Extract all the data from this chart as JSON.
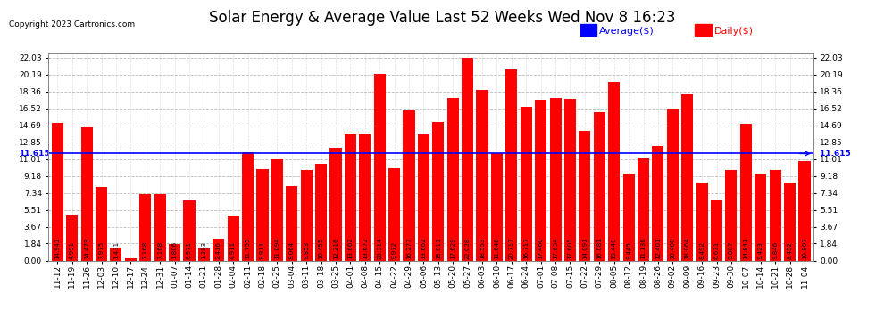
{
  "title": "Solar Energy & Average Value Last 52 Weeks Wed Nov 8 16:23",
  "copyright": "Copyright 2023 Cartronics.com",
  "legend_average": "Average($)",
  "legend_daily": "Daily($)",
  "average_value": 11.615,
  "categories": [
    "11-12",
    "11-19",
    "11-26",
    "12-03",
    "12-10",
    "12-17",
    "12-24",
    "12-31",
    "01-07",
    "01-14",
    "01-21",
    "01-28",
    "02-04",
    "02-11",
    "02-18",
    "02-25",
    "03-04",
    "03-11",
    "03-18",
    "03-25",
    "04-01",
    "04-08",
    "04-15",
    "04-22",
    "04-29",
    "05-06",
    "05-13",
    "05-20",
    "05-27",
    "06-03",
    "06-10",
    "06-17",
    "06-24",
    "07-01",
    "07-08",
    "07-15",
    "07-22",
    "07-29",
    "08-05",
    "08-12",
    "08-19",
    "08-26",
    "09-02",
    "09-09",
    "09-16",
    "09-23",
    "09-30",
    "10-07",
    "10-14",
    "10-21",
    "10-28",
    "11-04"
  ],
  "values": [
    14.941,
    4.991,
    14.479,
    7.975,
    1.431,
    0.243,
    7.168,
    7.168,
    1.806,
    6.571,
    1.293,
    2.416,
    4.911,
    11.755,
    9.911,
    11.094,
    8.064,
    9.853,
    10.455,
    12.216,
    13.662,
    13.672,
    20.314,
    9.972,
    16.277,
    13.662,
    15.011,
    17.629,
    22.028,
    18.553,
    11.646,
    20.717,
    16.717,
    17.46,
    17.634,
    17.605,
    14.091,
    16.081,
    19.44,
    9.445,
    11.136,
    12.401,
    16.46,
    18.064,
    8.492,
    6.631,
    9.807,
    14.841,
    9.423,
    9.846,
    8.452,
    10.807
  ],
  "bar_color": "#ff0000",
  "average_line_color": "#0000ff",
  "yticks": [
    0.0,
    1.84,
    3.67,
    5.51,
    7.34,
    9.18,
    11.01,
    12.85,
    14.69,
    16.52,
    18.36,
    20.19,
    22.03
  ],
  "ylim": [
    0,
    22.5
  ],
  "background_color": "#ffffff",
  "grid_color": "#bbbbbb",
  "title_fontsize": 12,
  "bar_label_fontsize": 5.0,
  "axis_label_fontsize": 6.5,
  "copyright_fontsize": 6.5,
  "legend_fontsize": 8
}
